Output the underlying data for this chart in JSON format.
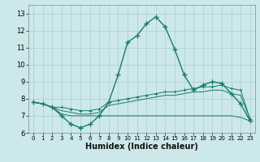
{
  "xlabel": "Humidex (Indice chaleur)",
  "bg_color": "#cce8ea",
  "grid_color": "#aacccc",
  "line_color": "#1a7a6e",
  "xlim": [
    -0.5,
    23.5
  ],
  "ylim": [
    6.0,
    13.5
  ],
  "xticks": [
    0,
    1,
    2,
    3,
    4,
    5,
    6,
    7,
    8,
    9,
    10,
    11,
    12,
    13,
    14,
    15,
    16,
    17,
    18,
    19,
    20,
    21,
    22,
    23
  ],
  "yticks": [
    6,
    7,
    8,
    9,
    10,
    11,
    12,
    13
  ],
  "curve1_x": [
    0,
    1,
    2,
    3,
    4,
    5,
    6,
    7,
    8,
    9,
    10,
    11,
    12,
    13,
    14,
    15,
    16,
    17,
    18,
    19,
    20,
    21,
    22,
    23
  ],
  "curve1_y": [
    7.8,
    7.7,
    7.5,
    7.0,
    6.5,
    6.3,
    6.5,
    7.0,
    7.8,
    9.4,
    11.3,
    11.7,
    12.4,
    12.8,
    12.2,
    10.9,
    9.4,
    8.5,
    8.8,
    9.0,
    8.9,
    8.3,
    7.7,
    6.7
  ],
  "curve2_x": [
    0,
    1,
    2,
    3,
    4,
    5,
    6,
    7,
    8,
    9,
    10,
    11,
    12,
    13,
    14,
    15,
    16,
    17,
    18,
    19,
    20,
    21,
    22,
    23
  ],
  "curve2_y": [
    7.8,
    7.7,
    7.5,
    7.5,
    7.4,
    7.3,
    7.3,
    7.4,
    7.8,
    7.9,
    8.0,
    8.1,
    8.2,
    8.3,
    8.4,
    8.4,
    8.5,
    8.6,
    8.7,
    8.7,
    8.8,
    8.6,
    8.5,
    6.8
  ],
  "curve3_x": [
    0,
    1,
    2,
    3,
    4,
    5,
    6,
    7,
    8,
    9,
    10,
    11,
    12,
    13,
    14,
    15,
    16,
    17,
    18,
    19,
    20,
    21,
    22,
    23
  ],
  "curve3_y": [
    7.8,
    7.7,
    7.5,
    7.3,
    7.2,
    7.1,
    7.1,
    7.2,
    7.6,
    7.7,
    7.8,
    7.9,
    8.0,
    8.1,
    8.2,
    8.2,
    8.3,
    8.4,
    8.4,
    8.5,
    8.5,
    8.3,
    8.2,
    6.8
  ],
  "curve4_x": [
    0,
    1,
    2,
    3,
    4,
    5,
    6,
    7,
    8,
    9,
    10,
    11,
    12,
    13,
    14,
    15,
    16,
    17,
    18,
    19,
    20,
    21,
    22,
    23
  ],
  "curve4_y": [
    7.8,
    7.7,
    7.5,
    7.1,
    7.0,
    7.0,
    7.0,
    7.0,
    7.0,
    7.0,
    7.0,
    7.0,
    7.0,
    7.0,
    7.0,
    7.0,
    7.0,
    7.0,
    7.0,
    7.0,
    7.0,
    7.0,
    6.9,
    6.7
  ]
}
